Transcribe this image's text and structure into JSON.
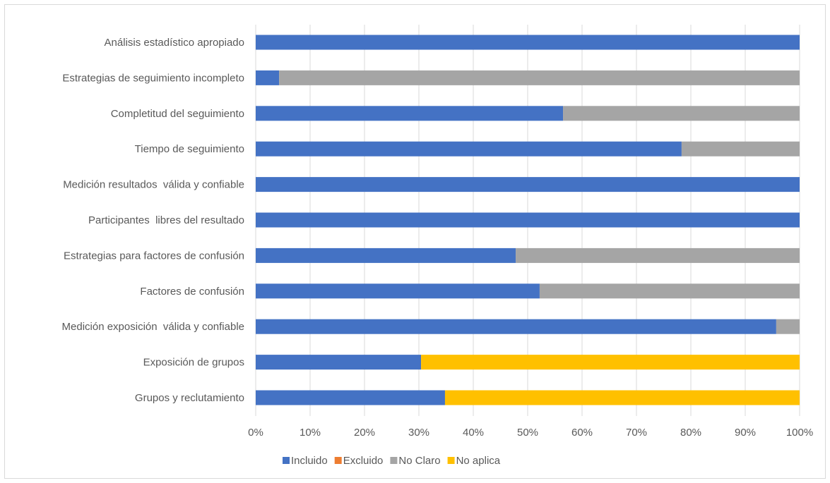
{
  "chart_data": {
    "type": "bar",
    "orientation": "horizontal",
    "stacked": "percent",
    "title": "",
    "xlabel": "",
    "ylabel": "",
    "xlim": [
      0,
      100
    ],
    "grid": true,
    "legend_position": "bottom",
    "x_ticks": [
      "0%",
      "10%",
      "20%",
      "30%",
      "40%",
      "50%",
      "60%",
      "70%",
      "80%",
      "90%",
      "100%"
    ],
    "categories": [
      "Análisis estadístico apropiado",
      "Estrategias de seguimiento incompleto",
      "Completitud del seguimiento",
      "Tiempo de seguimiento",
      "Medición resultados  válida y confiable",
      "Participantes  libres del resultado",
      "Estrategias para factores de confusión",
      "Factores de confusión",
      "Medición exposición  válida y confiable",
      "Exposición de grupos",
      "Grupos y reclutamiento"
    ],
    "series": [
      {
        "name": "Incluido",
        "color": "#4472c4",
        "values": [
          100,
          4.3,
          56.5,
          78.3,
          100,
          100,
          47.8,
          52.2,
          95.7,
          30.4,
          34.8
        ]
      },
      {
        "name": "Excluido",
        "color": "#ed7d31",
        "values": [
          0,
          0,
          0,
          0,
          0,
          0,
          0,
          0,
          0,
          0,
          0
        ]
      },
      {
        "name": "No Claro",
        "color": "#a5a5a5",
        "values": [
          0,
          95.7,
          43.5,
          21.7,
          0,
          0,
          52.2,
          47.8,
          4.3,
          0,
          0
        ]
      },
      {
        "name": "No aplica",
        "color": "#ffc000",
        "values": [
          0,
          0,
          0,
          0,
          0,
          0,
          0,
          0,
          0,
          69.6,
          65.2
        ]
      }
    ]
  }
}
